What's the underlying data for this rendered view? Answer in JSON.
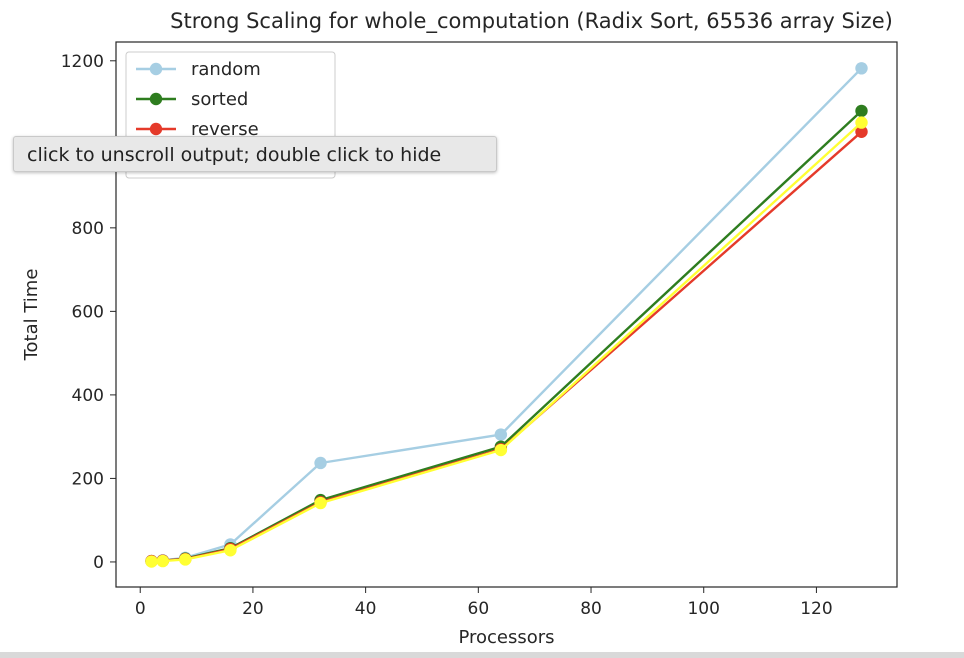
{
  "tooltip": {
    "text": "click to unscroll output; double click to hide"
  },
  "chart_data": {
    "type": "line",
    "title": "Strong Scaling for whole_computation (Radix Sort, 65536 array Size)",
    "xlabel": "Processors",
    "ylabel": "Total Time",
    "xlim": [
      -4.3,
      134.3
    ],
    "ylim": [
      -60,
      1245
    ],
    "xticks": [
      0,
      20,
      40,
      60,
      80,
      100,
      120
    ],
    "yticks": [
      0,
      200,
      400,
      600,
      800,
      1000,
      1200
    ],
    "legend_position": "top-left",
    "x": [
      2,
      4,
      8,
      16,
      32,
      64,
      128
    ],
    "series": [
      {
        "name": "random",
        "color": "#a6cee3",
        "values": [
          2,
          4,
          10,
          42,
          237,
          305,
          1182
        ]
      },
      {
        "name": "sorted",
        "color": "#2e7d1f",
        "values": [
          2,
          3,
          8,
          33,
          148,
          276,
          1080
        ]
      },
      {
        "name": "reverse",
        "color": "#e53a2a",
        "values": [
          2,
          3,
          7,
          31,
          143,
          270,
          1030
        ]
      },
      {
        "name": "",
        "color": "#ffff33",
        "values": [
          1,
          2,
          6,
          28,
          141,
          268,
          1052
        ]
      }
    ]
  }
}
